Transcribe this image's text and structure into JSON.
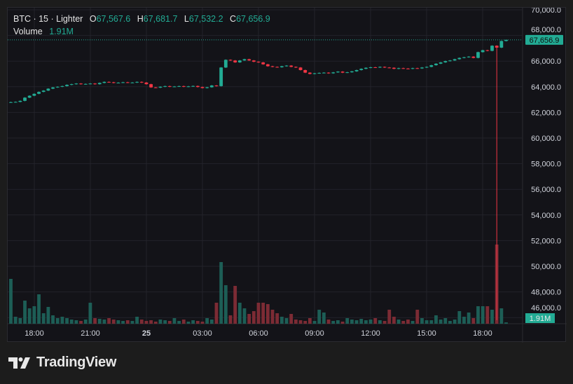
{
  "header": {
    "symbol": "BTC",
    "interval": "15",
    "exchange": "Lighter",
    "separator": " · ",
    "open_label": "O",
    "open": "67,567.6",
    "high_label": "H",
    "high": "67,681.7",
    "low_label": "L",
    "low": "67,532.2",
    "close_label": "C",
    "close": "67,656.9",
    "volume_label": "Volume",
    "volume": "1.91M"
  },
  "brand": {
    "name": "TradingView"
  },
  "colors": {
    "up": "#22ab94",
    "down": "#f23645",
    "up_volume": "#1d5e56",
    "down_volume": "#7c2b34",
    "background": "#131318",
    "grid": "#23232a"
  },
  "chart_data": {
    "type": "candlestick",
    "interval_minutes": 15,
    "time_ticks": [
      "18:00",
      "21:00",
      "25",
      "03:00",
      "06:00",
      "09:00",
      "12:00",
      "15:00",
      "18:00"
    ],
    "price_ticks": [
      "70,000.0",
      "68,000.0",
      "66,000.0",
      "64,000.0",
      "62,000.0",
      "60,000.0",
      "58,000.0",
      "56,000.0",
      "54,000.0",
      "52,000.0",
      "50,000.0",
      "48,000.0",
      "46,000.0"
    ],
    "ylim": [
      45700,
      70000
    ],
    "grid": true,
    "last_price": "67,656.9",
    "last_volume": "1.91M",
    "first_open": 62780,
    "close": [
      62800,
      62820,
      62900,
      63150,
      63300,
      63450,
      63600,
      63700,
      63850,
      63950,
      64000,
      64050,
      64150,
      64200,
      64250,
      64200,
      64220,
      64250,
      64200,
      64300,
      64380,
      64350,
      64300,
      64320,
      64350,
      64320,
      64330,
      64380,
      64330,
      64200,
      63950,
      63930,
      64000,
      64050,
      64000,
      64020,
      64050,
      64000,
      64030,
      64060,
      63980,
      63900,
      63960,
      64100,
      64050,
      65500,
      66100,
      66050,
      65900,
      66050,
      66150,
      66050,
      65950,
      65900,
      65750,
      65600,
      65550,
      65520,
      65600,
      65650,
      65550,
      65500,
      65300,
      65100,
      65000,
      65050,
      65080,
      65100,
      65050,
      65120,
      65180,
      65100,
      65130,
      65200,
      65300,
      65400,
      65480,
      65520,
      65500,
      65550,
      65500,
      65480,
      65400,
      65450,
      65420,
      65400,
      65450,
      65430,
      65500,
      65550,
      65680,
      65800,
      65900,
      66000,
      66050,
      66150,
      66250,
      66300,
      66350,
      66250,
      66700,
      66850,
      66800,
      67200,
      67050,
      67567.6,
      67656.9
    ],
    "low_overrides": [
      {
        "index": 104,
        "low": 45800
      }
    ],
    "last_candle": {
      "open": 67567.6,
      "high": 67681.7,
      "low": 67532.2,
      "close": 67656.9
    },
    "volume_millions": [
      64,
      10,
      8,
      33,
      22,
      25,
      42,
      15,
      24,
      12,
      8,
      10,
      8,
      6,
      5,
      4,
      6,
      30,
      8,
      7,
      6,
      8,
      6,
      5,
      4,
      5,
      4,
      10,
      6,
      4,
      5,
      3,
      6,
      5,
      4,
      8,
      4,
      6,
      3,
      5,
      4,
      3,
      8,
      6,
      30,
      88,
      55,
      12,
      54,
      30,
      22,
      14,
      18,
      30,
      30,
      28,
      20,
      15,
      10,
      8,
      14,
      6,
      5,
      4,
      8,
      4,
      20,
      16,
      6,
      4,
      5,
      3,
      8,
      6,
      5,
      7,
      5,
      6,
      8,
      5,
      4,
      20,
      10,
      6,
      4,
      6,
      4,
      20,
      8,
      5,
      5,
      12,
      6,
      8,
      4,
      6,
      18,
      10,
      16,
      8,
      25,
      25,
      25,
      20,
      113,
      22,
      1.91
    ]
  }
}
